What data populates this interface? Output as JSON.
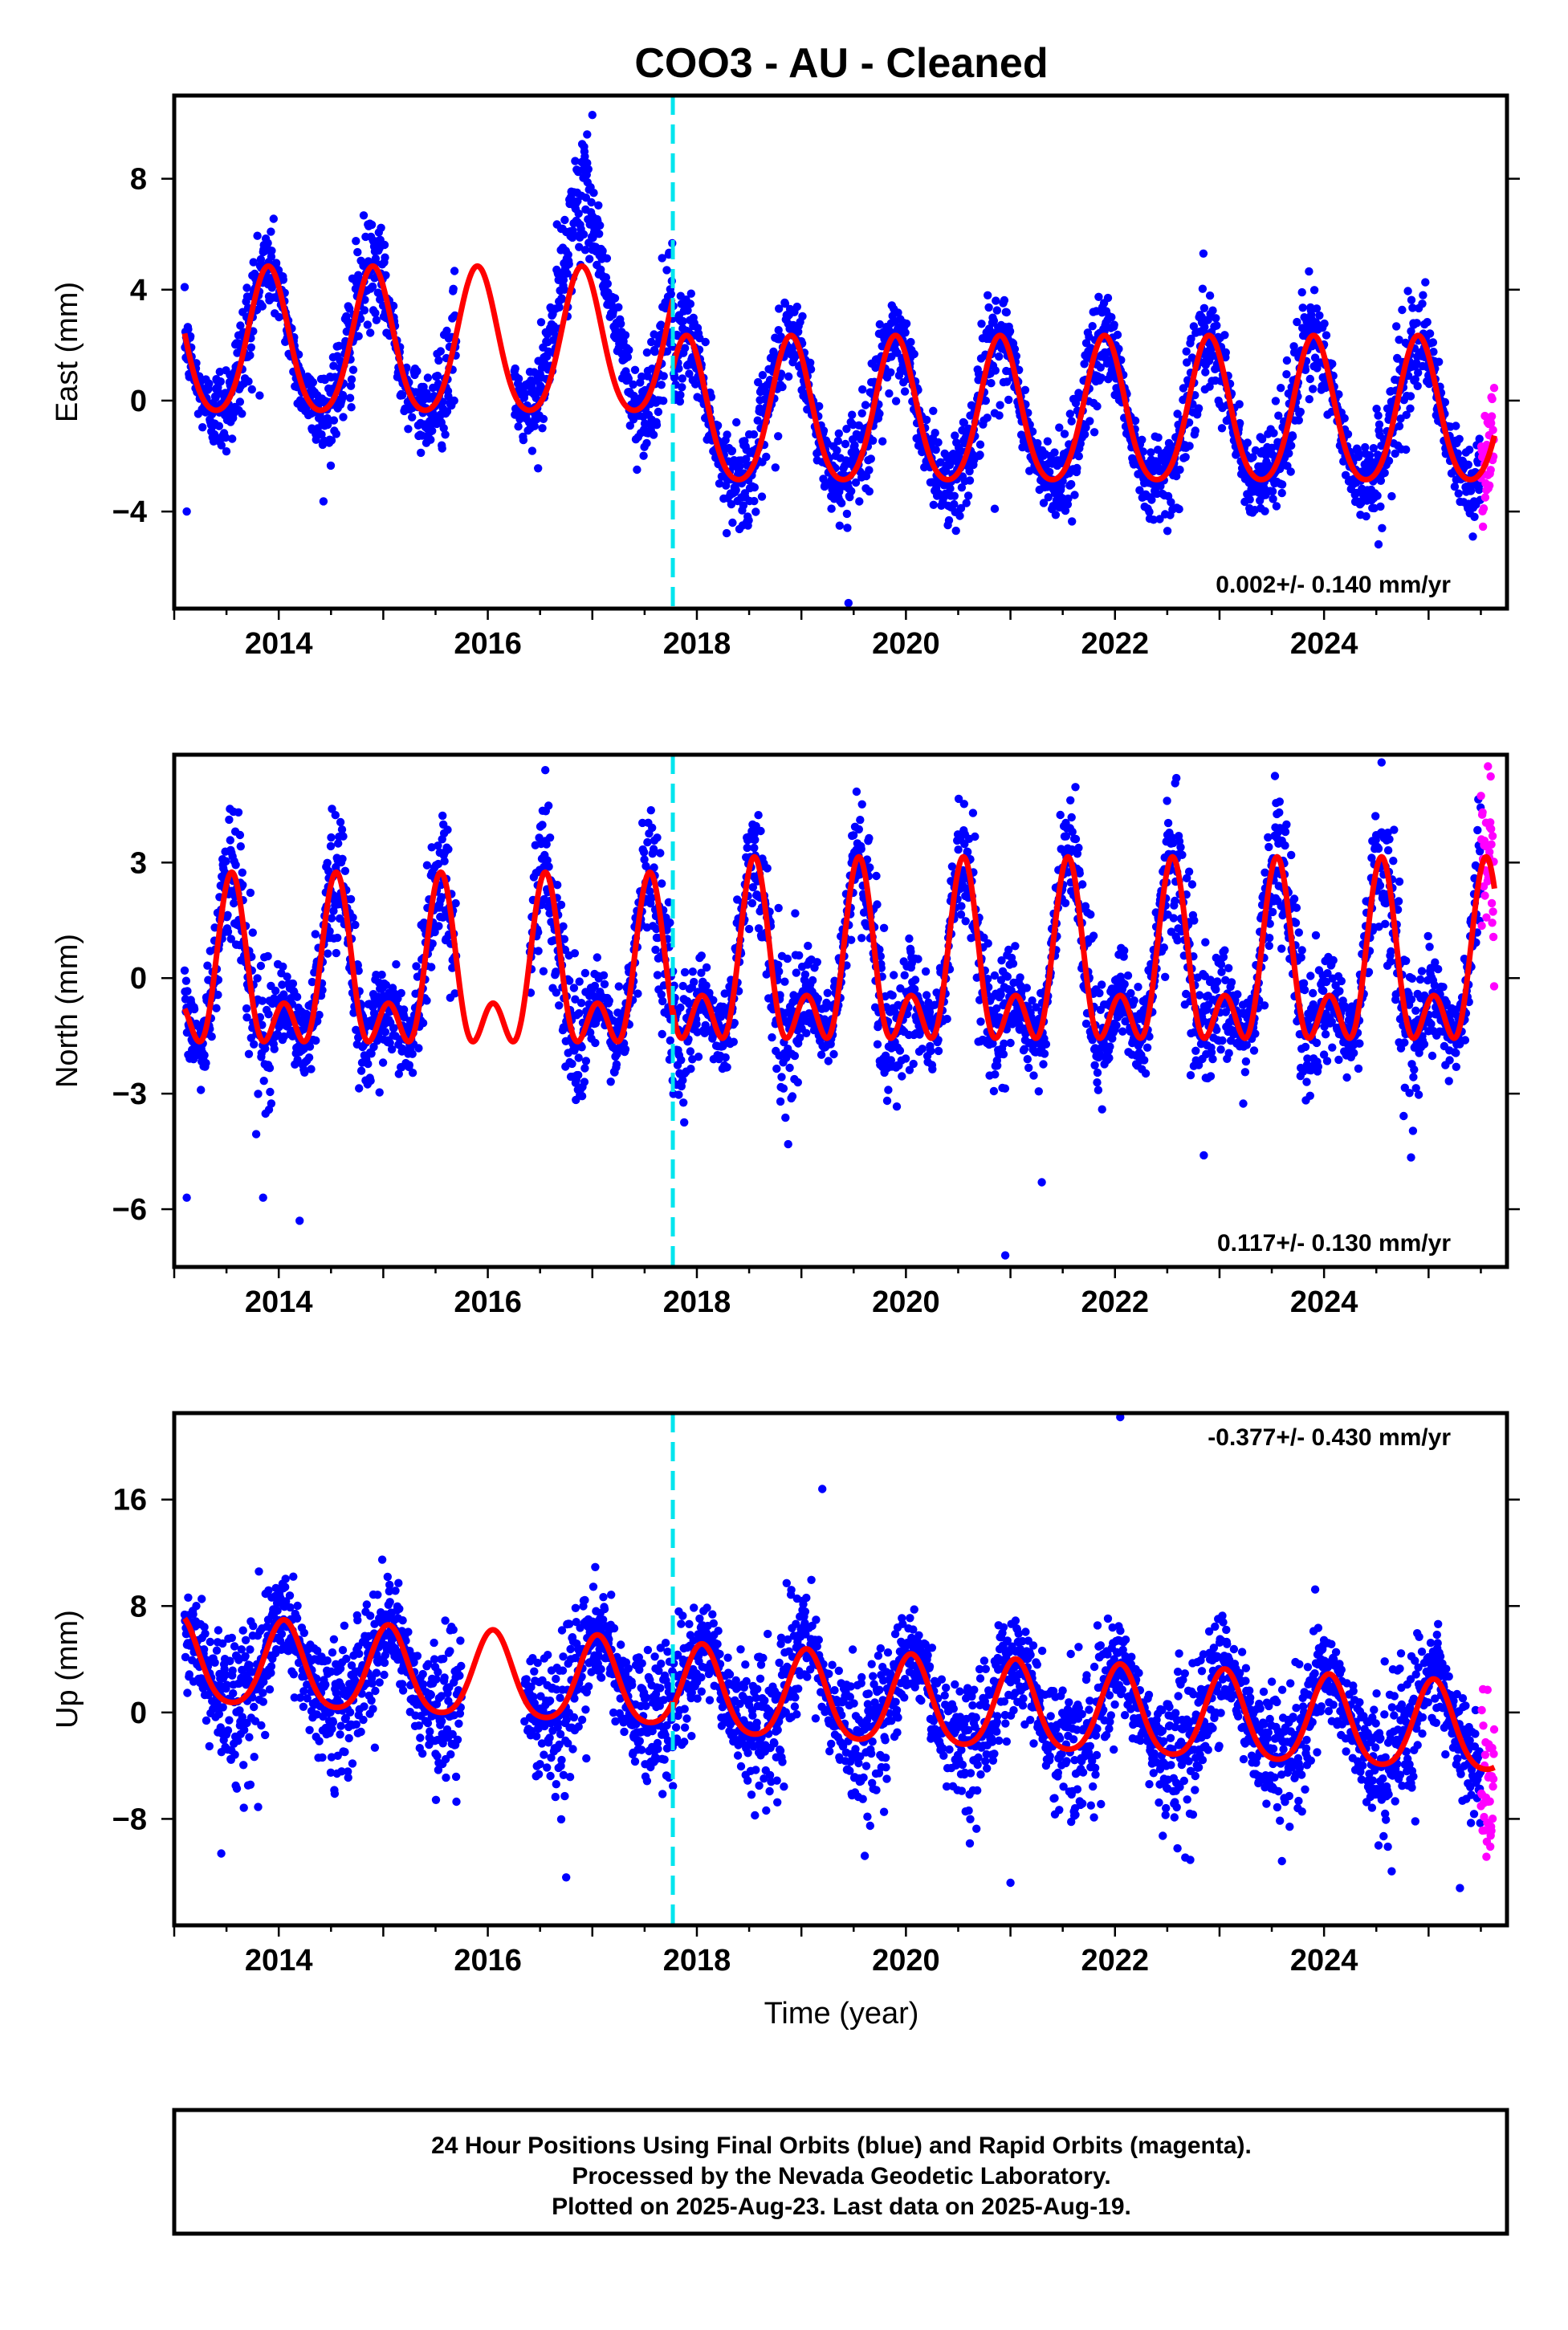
{
  "title": "COO3  - AU - Cleaned",
  "xlabel": "Time (year)",
  "footer": {
    "lines": [
      "24 Hour Positions Using Final Orbits (blue) and Rapid Orbits (magenta).",
      "Processed by the Nevada Geodetic Laboratory.",
      "Plotted on 2025-Aug-23. Last data on 2025-Aug-19."
    ]
  },
  "colors": {
    "final_orbits": "#0000ff",
    "rapid_orbits": "#ff00ff",
    "model_fit": "#ff0000",
    "equipment_change": "#00e5ee"
  },
  "chart_data": [
    {
      "type": "scatter",
      "ylabel": "East (mm)",
      "xlim": [
        2013.0,
        2025.75
      ],
      "ylim": [
        -7.5,
        11.0
      ],
      "xticks": [
        2014,
        2016,
        2018,
        2020,
        2022,
        2024
      ],
      "yticks": [
        -4,
        0,
        4,
        8
      ],
      "rate_label": "0.002+/- 0.140 mm/yr",
      "rate_position": "bottom-right",
      "data_span": [
        2013.1,
        2025.63
      ],
      "rapid_span": [
        2025.5,
        2025.63
      ],
      "equipment_change_x": 2017.77,
      "series": [
        {
          "name": "Final Orbits (blue)",
          "kind": "points"
        },
        {
          "name": "Rapid Orbits (magenta)",
          "kind": "points"
        },
        {
          "name": "",
          "kind": "model"
        }
      ],
      "model": [
        {
          "range": [
            2013.1,
            2017.77
          ],
          "offset": 1.9,
          "amp_annual": 2.6,
          "amp_semiannual": 0.35,
          "phase_year": 2013.9
        },
        {
          "range": [
            2017.77,
            2025.63
          ],
          "offset": -0.6,
          "amp_annual": 2.6,
          "amp_semiannual": 0.35,
          "phase_year": 2013.9
        }
      ],
      "anomaly": {
        "range": [
          2016.25,
          2017.35
        ],
        "peak_year": 2017.0,
        "extra_mm": 2.5
      },
      "scatter_sigma": 1.1,
      "gaps": [
        [
          2015.7,
          2016.25
        ]
      ],
      "outliers": [
        [
          2013.12,
          -4.0
        ],
        [
          2017.0,
          10.3
        ],
        [
          2016.95,
          9.6
        ],
        [
          2019.45,
          -7.3
        ],
        [
          2020.85,
          -3.9
        ]
      ]
    },
    {
      "type": "scatter",
      "ylabel": "North (mm)",
      "xlim": [
        2013.0,
        2025.75
      ],
      "ylim": [
        -7.5,
        5.8
      ],
      "xticks": [
        2014,
        2016,
        2018,
        2020,
        2022,
        2024
      ],
      "yticks": [
        -6,
        -3,
        0,
        3
      ],
      "rate_label": "0.117+/- 0.130 mm/yr",
      "rate_position": "bottom-right",
      "data_span": [
        2013.1,
        2025.63
      ],
      "rapid_span": [
        2025.5,
        2025.63
      ],
      "equipment_change_x": 2017.77,
      "series": [
        {
          "name": "Final Orbits (blue)",
          "kind": "points"
        },
        {
          "name": "Rapid Orbits (magenta)",
          "kind": "points"
        },
        {
          "name": "",
          "kind": "model"
        }
      ],
      "model": [
        {
          "range": [
            2013.1,
            2017.77
          ],
          "offset": -0.15,
          "amp_annual": 1.7,
          "amp_semiannual": 1.2,
          "phase_year": 2013.55
        },
        {
          "range": [
            2017.77,
            2025.63
          ],
          "offset": 0.05,
          "amp_annual": 1.8,
          "amp_semiannual": 1.3,
          "phase_year": 2013.55
        }
      ],
      "scatter_sigma": 1.0,
      "gaps": [
        [
          2015.7,
          2016.4
        ]
      ],
      "outliers": [
        [
          2013.12,
          -5.7
        ],
        [
          2013.85,
          -5.7
        ],
        [
          2014.2,
          -6.3
        ],
        [
          2020.95,
          -7.2
        ],
        [
          2021.3,
          -5.3
        ],
        [
          2022.85,
          -4.6
        ],
        [
          2016.55,
          5.4
        ],
        [
          2024.55,
          5.6
        ]
      ]
    },
    {
      "type": "scatter",
      "ylabel": "Up (mm)",
      "xlim": [
        2013.0,
        2025.75
      ],
      "ylim": [
        -16.0,
        22.5
      ],
      "xticks": [
        2014,
        2016,
        2018,
        2020,
        2022,
        2024
      ],
      "yticks": [
        -8,
        0,
        8,
        16
      ],
      "rate_label": "-0.377+/- 0.430 mm/yr",
      "rate_position": "top-right",
      "data_span": [
        2013.1,
        2025.63
      ],
      "rapid_span": [
        2025.5,
        2025.63
      ],
      "equipment_change_x": 2017.77,
      "series": [
        {
          "name": "Final Orbits (blue)",
          "kind": "points"
        },
        {
          "name": "Rapid Orbits (magenta)",
          "kind": "points"
        },
        {
          "name": "",
          "kind": "model"
        }
      ],
      "model": [
        {
          "range": [
            2013.1,
            2017.77
          ],
          "offset": 1.4,
          "amp_annual": 3.2,
          "amp_semiannual": 0.5,
          "phase_year": 2014.05
        },
        {
          "range": [
            2017.77,
            2025.63
          ],
          "offset": 1.0,
          "amp_annual": 3.3,
          "amp_semiannual": 0.5,
          "phase_year": 2014.05
        }
      ],
      "model_trend_mm_per_yr": -0.377,
      "scatter_sigma": 3.0,
      "gaps": [
        [
          2015.75,
          2016.35
        ]
      ],
      "outliers": [
        [
          2022.05,
          22.2
        ],
        [
          2019.2,
          16.8
        ],
        [
          2021.0,
          -12.8
        ],
        [
          2013.45,
          -10.6
        ],
        [
          2016.75,
          -12.4
        ],
        [
          2025.3,
          -13.2
        ]
      ]
    }
  ]
}
